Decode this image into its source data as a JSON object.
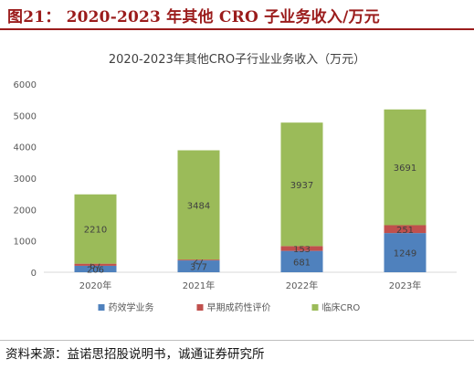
{
  "figure": {
    "title": "图21：  2020-2023 年其他 CRO 子业务收入/万元",
    "source": "资料来源：益诺思招股说明书，诚通证券研究所"
  },
  "chart_data": {
    "type": "bar",
    "stacked": true,
    "title": "2020-2023年其他CRO子行业业务收入（万元）",
    "categories": [
      "2020年",
      "2021年",
      "2022年",
      "2023年"
    ],
    "series": [
      {
        "name": "药效学业务",
        "color": "#4f81bd",
        "values": [
          206,
          377,
          681,
          1249
        ]
      },
      {
        "name": "早期成药性评价",
        "color": "#c0504d",
        "values": [
          67,
          27,
          153,
          251
        ]
      },
      {
        "name": "临床CRO",
        "color": "#9bbb59",
        "values": [
          2210,
          3484,
          3937,
          3691
        ]
      }
    ],
    "ylim": [
      0,
      6000
    ],
    "yticks": [
      0,
      1000,
      2000,
      3000,
      4000,
      5000,
      6000
    ],
    "grid": false,
    "legend": "bottom"
  }
}
